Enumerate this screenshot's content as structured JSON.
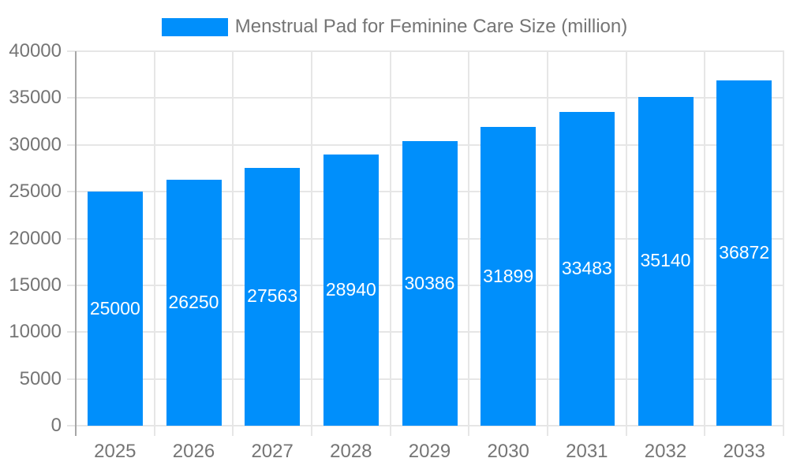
{
  "legend": {
    "label": "Menstrual Pad for Feminine Care Size (million)"
  },
  "chart_data": {
    "type": "bar",
    "title": "Menstrual Pad for Feminine Care Size (million)",
    "categories": [
      "2025",
      "2026",
      "2027",
      "2028",
      "2029",
      "2030",
      "2031",
      "2032",
      "2033"
    ],
    "values": [
      25000,
      26250,
      27563,
      28940,
      30386,
      31899,
      33483,
      35140,
      36872
    ],
    "xlabel": "",
    "ylabel": "",
    "ylim": [
      0,
      40000
    ],
    "ytick_step": 5000,
    "yticks": [
      0,
      5000,
      10000,
      15000,
      20000,
      25000,
      30000,
      35000,
      40000
    ],
    "grid": true,
    "legend_position": "top",
    "value_labels": "inside-center",
    "colors": {
      "bar": "#008ffb",
      "value_label": "#ffffff",
      "axis_text": "#757575",
      "gridline": "#e6e6e6",
      "axis_line": "#a6a6a6",
      "background": "#ffffff"
    }
  }
}
